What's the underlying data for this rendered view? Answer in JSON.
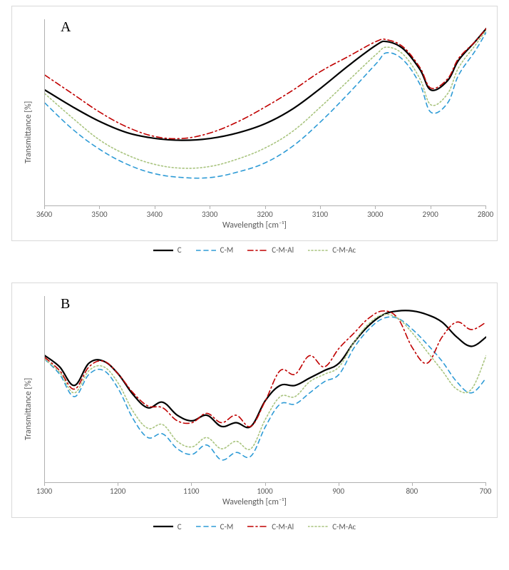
{
  "global": {
    "background_color": "#ffffff",
    "grid_border_color": "#d9d9d9",
    "axis_line_color": "#b0b0b0",
    "tick_label_color": "#595959",
    "axis_title_color": "#595959",
    "tick_label_fontsize": 11,
    "axis_title_fontsize": 12,
    "panel_label_fontsize": 20,
    "panel_label_font": "Times New Roman"
  },
  "legend": {
    "items": [
      {
        "label": "C",
        "color": "#000000",
        "dash": "solid",
        "width": 2.2
      },
      {
        "label": "C-M",
        "color": "#2e9bd6",
        "dash": "dash",
        "width": 1.6
      },
      {
        "label": "C-M-Al",
        "color": "#c00000",
        "dash": "dashdot",
        "width": 1.6
      },
      {
        "label": "C-M-Ac",
        "color": "#a9c47f",
        "dash": "dot",
        "width": 1.6
      }
    ]
  },
  "panelA": {
    "label": "A",
    "type": "line",
    "xlabel": "Wavelength [cm⁻¹]",
    "ylabel": "Transmittance [%]",
    "xlim": [
      3600,
      2800
    ],
    "xticks": [
      3600,
      3500,
      3400,
      3300,
      3200,
      3100,
      3000,
      2900,
      2800
    ],
    "ylim": [
      0,
      100
    ],
    "series": {
      "C": {
        "color": "#000000",
        "dash": "solid",
        "width": 2.2,
        "x": [
          3600,
          3550,
          3500,
          3450,
          3400,
          3350,
          3300,
          3250,
          3200,
          3150,
          3100,
          3050,
          3000,
          2980,
          2950,
          2920,
          2900,
          2870,
          2850,
          2820,
          2800
        ],
        "y": [
          62,
          53,
          45,
          39,
          36,
          35,
          36,
          39,
          44,
          52,
          63,
          75,
          86,
          88,
          84,
          73,
          62,
          67,
          78,
          88,
          95
        ]
      },
      "C-M": {
        "color": "#2e9bd6",
        "dash": "dash",
        "width": 1.6,
        "x": [
          3600,
          3550,
          3500,
          3450,
          3400,
          3350,
          3300,
          3250,
          3200,
          3150,
          3100,
          3050,
          3000,
          2980,
          2950,
          2920,
          2900,
          2870,
          2850,
          2820,
          2800
        ],
        "y": [
          55,
          41,
          30,
          22,
          17,
          15,
          15,
          18,
          23,
          32,
          45,
          60,
          76,
          82,
          78,
          65,
          50,
          55,
          70,
          83,
          93
        ]
      },
      "C-M-Al": {
        "color": "#c00000",
        "dash": "dashdot",
        "width": 1.6,
        "x": [
          3600,
          3550,
          3500,
          3450,
          3400,
          3350,
          3300,
          3250,
          3200,
          3150,
          3100,
          3050,
          3000,
          2980,
          2950,
          2920,
          2900,
          2870,
          2850,
          2820,
          2800
        ],
        "y": [
          70,
          60,
          50,
          42,
          37,
          36,
          39,
          45,
          53,
          62,
          72,
          80,
          88,
          89,
          85,
          74,
          63,
          68,
          79,
          88,
          95
        ]
      },
      "C-M-Ac": {
        "color": "#a9c47f",
        "dash": "dot",
        "width": 1.6,
        "x": [
          3600,
          3550,
          3500,
          3450,
          3400,
          3350,
          3300,
          3250,
          3200,
          3150,
          3100,
          3050,
          3000,
          2980,
          2950,
          2920,
          2900,
          2870,
          2850,
          2820,
          2800
        ],
        "y": [
          60,
          47,
          35,
          27,
          22,
          20,
          21,
          25,
          31,
          40,
          53,
          67,
          81,
          85,
          81,
          68,
          54,
          60,
          74,
          86,
          94
        ]
      }
    }
  },
  "panelB": {
    "label": "B",
    "type": "line",
    "xlabel": "Wavelength [cm⁻¹]",
    "ylabel": "Transmittance [%]",
    "xlim": [
      1300,
      700
    ],
    "xticks": [
      1300,
      1200,
      1100,
      1000,
      900,
      800,
      700
    ],
    "ylim": [
      0,
      100
    ],
    "series": {
      "C": {
        "color": "#000000",
        "dash": "solid",
        "width": 2.2,
        "x": [
          1300,
          1280,
          1260,
          1240,
          1220,
          1200,
          1180,
          1160,
          1140,
          1120,
          1100,
          1080,
          1060,
          1040,
          1020,
          1000,
          980,
          960,
          940,
          920,
          900,
          880,
          860,
          840,
          820,
          800,
          780,
          760,
          740,
          720,
          700
        ],
        "y": [
          68,
          62,
          52,
          64,
          65,
          58,
          47,
          40,
          43,
          36,
          33,
          36,
          30,
          32,
          30,
          44,
          52,
          52,
          56,
          60,
          64,
          75,
          84,
          90,
          92,
          92,
          90,
          86,
          78,
          73,
          78
        ]
      },
      "C-M": {
        "color": "#2e9bd6",
        "dash": "dash",
        "width": 1.6,
        "x": [
          1300,
          1280,
          1260,
          1240,
          1220,
          1200,
          1180,
          1160,
          1140,
          1120,
          1100,
          1080,
          1060,
          1040,
          1020,
          1000,
          980,
          960,
          940,
          920,
          900,
          880,
          860,
          840,
          820,
          800,
          780,
          760,
          740,
          720,
          700
        ],
        "y": [
          66,
          58,
          46,
          58,
          60,
          50,
          34,
          24,
          26,
          18,
          15,
          20,
          12,
          16,
          14,
          30,
          42,
          42,
          48,
          54,
          58,
          72,
          82,
          88,
          88,
          82,
          74,
          65,
          54,
          48,
          56
        ]
      },
      "C-M-Al": {
        "color": "#c00000",
        "dash": "dashdot",
        "width": 1.6,
        "x": [
          1300,
          1280,
          1260,
          1240,
          1220,
          1200,
          1180,
          1160,
          1140,
          1120,
          1100,
          1080,
          1060,
          1040,
          1020,
          1000,
          980,
          960,
          940,
          920,
          900,
          880,
          860,
          840,
          820,
          800,
          780,
          760,
          740,
          720,
          700
        ],
        "y": [
          67,
          60,
          50,
          62,
          65,
          58,
          48,
          41,
          40,
          33,
          32,
          37,
          32,
          36,
          30,
          44,
          60,
          58,
          68,
          62,
          72,
          80,
          88,
          92,
          88,
          72,
          64,
          78,
          86,
          82,
          86
        ]
      },
      "C-M-Ac": {
        "color": "#a9c47f",
        "dash": "dot",
        "width": 1.6,
        "x": [
          1300,
          1280,
          1260,
          1240,
          1220,
          1200,
          1180,
          1160,
          1140,
          1120,
          1100,
          1080,
          1060,
          1040,
          1020,
          1000,
          980,
          960,
          940,
          920,
          900,
          880,
          860,
          840,
          820,
          800,
          780,
          760,
          740,
          720,
          700
        ],
        "y": [
          66,
          59,
          48,
          60,
          62,
          53,
          38,
          29,
          31,
          22,
          19,
          24,
          18,
          22,
          18,
          34,
          46,
          46,
          54,
          58,
          62,
          75,
          85,
          90,
          88,
          80,
          70,
          60,
          50,
          50,
          68
        ]
      }
    }
  }
}
